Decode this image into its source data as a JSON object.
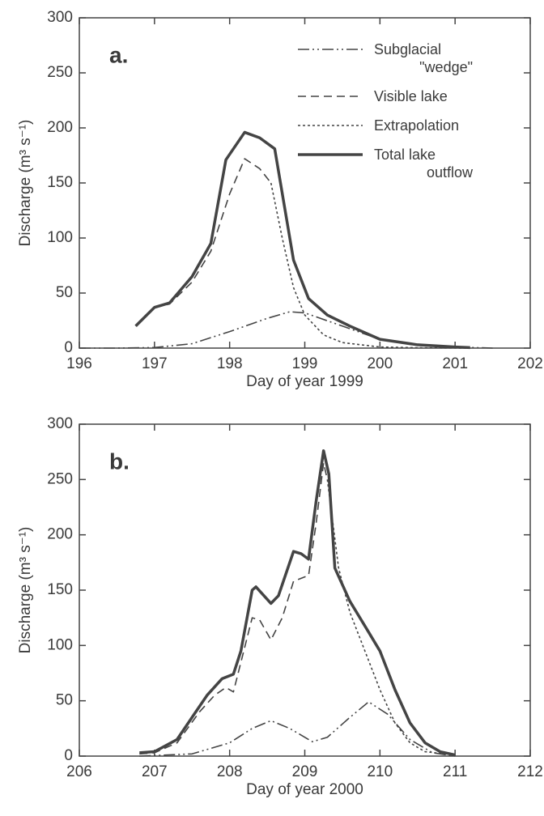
{
  "chart_data": [
    {
      "type": "line",
      "title": "a.",
      "xlabel": "Day of year 1999",
      "ylabel": "Discharge (m³ s⁻¹)",
      "xlim": [
        196,
        202
      ],
      "xticks": [
        196,
        197,
        198,
        199,
        200,
        201,
        202
      ],
      "ylim": [
        0,
        300
      ],
      "yticks": [
        0,
        50,
        100,
        150,
        200,
        250,
        300
      ],
      "legend": "upper right",
      "series": [
        {
          "name": "Subglacial \"wedge\"",
          "color": "#444444",
          "dash": "dashdotdot",
          "linewidth": 1.6,
          "x": [
            196,
            196.5,
            197,
            197.5,
            198,
            198.5,
            198.8,
            199,
            199.5,
            200,
            200.5,
            201,
            201.5
          ],
          "values": [
            0,
            0,
            0.5,
            4,
            15,
            27,
            33,
            32,
            20,
            8,
            3,
            1,
            0
          ]
        },
        {
          "name": "Visible lake",
          "color": "#444444",
          "dash": "dashed",
          "linewidth": 1.6,
          "x": [
            196.75,
            197,
            197.2,
            197.5,
            197.75,
            198,
            198.2,
            198.4,
            198.55
          ],
          "values": [
            20,
            37,
            40,
            60,
            88,
            140,
            172,
            163,
            150
          ]
        },
        {
          "name": "Extrapolation",
          "color": "#444444",
          "dash": "dotted",
          "linewidth": 1.6,
          "x": [
            198.55,
            198.7,
            198.85,
            199,
            199.25,
            199.5,
            200,
            200.5,
            201.2
          ],
          "values": [
            150,
            100,
            55,
            30,
            12,
            5,
            1,
            0.3,
            0
          ]
        },
        {
          "name": "Total lake outflow",
          "color": "#444444",
          "dash": "solid",
          "linewidth": 3.5,
          "x": [
            196.75,
            197,
            197.2,
            197.5,
            197.75,
            197.95,
            198.2,
            198.4,
            198.6,
            198.85,
            199.05,
            199.3,
            199.6,
            200,
            200.5,
            201,
            201.2
          ],
          "values": [
            20,
            37,
            41,
            65,
            95,
            171,
            196,
            191,
            181,
            80,
            45,
            30,
            20,
            8,
            3,
            1,
            0.5
          ]
        }
      ]
    },
    {
      "type": "line",
      "title": "b.",
      "xlabel": "Day of year 2000",
      "ylabel": "Discharge (m³ s⁻¹)",
      "xlim": [
        206,
        212
      ],
      "xticks": [
        206,
        207,
        208,
        209,
        210,
        211,
        212
      ],
      "ylim": [
        0,
        300
      ],
      "yticks": [
        0,
        50,
        100,
        150,
        200,
        250,
        300
      ],
      "series": [
        {
          "color": "#444444",
          "dash": "dashdotdot",
          "linewidth": 1.6,
          "x": [
            206.8,
            207.5,
            208,
            208.3,
            208.55,
            208.8,
            209.1,
            209.3,
            209.6,
            209.85,
            210.1,
            210.4,
            210.7,
            211
          ],
          "values": [
            0,
            2,
            12,
            25,
            32,
            25,
            13,
            17,
            35,
            49,
            38,
            15,
            3,
            0
          ]
        },
        {
          "color": "#444444",
          "dash": "dashed",
          "linewidth": 1.6,
          "x": [
            206.8,
            207,
            207.3,
            207.6,
            207.8,
            207.95,
            208.05,
            208.3,
            208.4,
            208.55,
            208.7,
            208.85,
            209,
            209.05,
            209.15,
            209.25,
            209.3
          ],
          "values": [
            2,
            3,
            12,
            40,
            55,
            62,
            58,
            125,
            123,
            105,
            125,
            158,
            162,
            163,
            210,
            265,
            250
          ]
        },
        {
          "color": "#444444",
          "dash": "dotted",
          "linewidth": 1.6,
          "x": [
            209.3,
            209.45,
            209.6,
            209.8,
            210,
            210.2,
            210.4,
            210.6,
            211
          ],
          "values": [
            250,
            170,
            130,
            95,
            60,
            30,
            12,
            4,
            1
          ]
        },
        {
          "color": "#444444",
          "dash": "solid",
          "linewidth": 3.5,
          "x": [
            206.8,
            207,
            207.3,
            207.5,
            207.7,
            207.9,
            208.05,
            208.15,
            208.3,
            208.35,
            208.55,
            208.65,
            208.85,
            208.95,
            209.05,
            209.15,
            209.25,
            209.32,
            209.4,
            209.6,
            209.85,
            210,
            210.2,
            210.4,
            210.6,
            210.8,
            211
          ],
          "values": [
            3,
            4,
            15,
            35,
            55,
            70,
            74,
            95,
            150,
            153,
            138,
            145,
            185,
            183,
            178,
            230,
            276,
            255,
            170,
            140,
            112,
            95,
            60,
            30,
            12,
            4,
            1
          ]
        }
      ]
    }
  ]
}
